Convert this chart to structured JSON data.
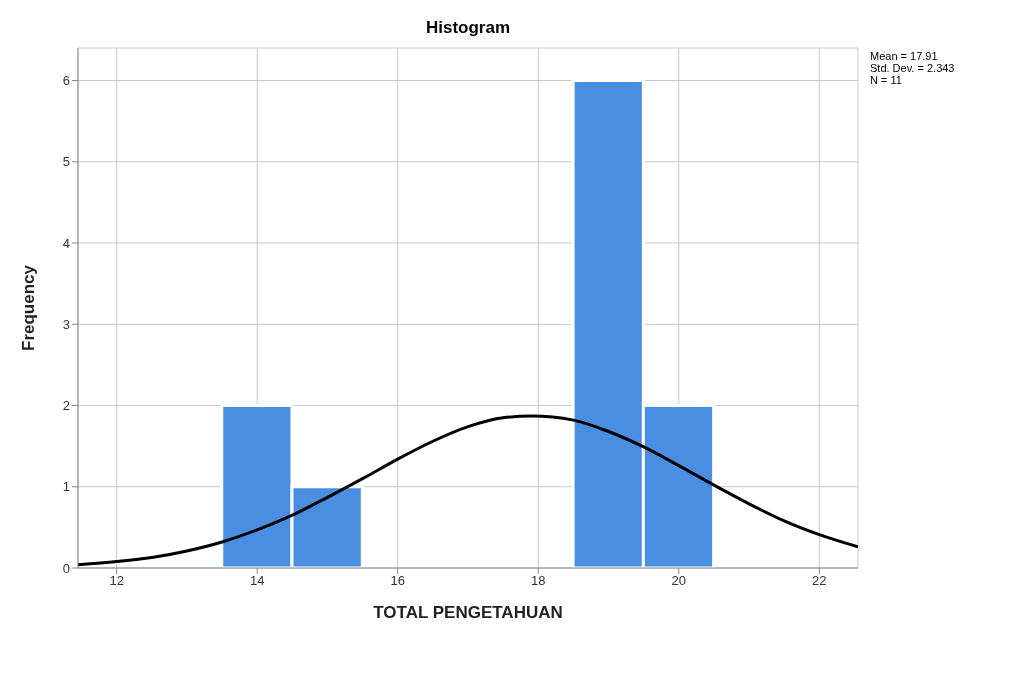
{
  "chart_data": {
    "type": "histogram",
    "title": "Histogram",
    "xlabel": "TOTAL PENGETAHUAN",
    "ylabel": "Frequency",
    "bins": [
      13.5,
      14.5,
      15.5,
      16.5,
      17.5,
      18.5,
      19.5,
      20.5
    ],
    "values": [
      2,
      1,
      0,
      0,
      0,
      6,
      2
    ],
    "color": "#4a8ee2",
    "series": [
      {
        "type": "line",
        "color": "#000000",
        "x": [
          11.45,
          12,
          12.5,
          13,
          13.5,
          14,
          14.5,
          15,
          15.5,
          16,
          16.5,
          17,
          17.5,
          17.91,
          18.5,
          19,
          19.5,
          20,
          20.5,
          21,
          21.5,
          22,
          22.55
        ],
        "values": [
          0.04,
          0.08,
          0.13,
          0.21,
          0.32,
          0.47,
          0.65,
          0.87,
          1.1,
          1.34,
          1.56,
          1.74,
          1.85,
          1.87,
          1.82,
          1.68,
          1.49,
          1.26,
          1.02,
          0.79,
          0.58,
          0.41,
          0.26
        ]
      }
    ],
    "xlim": [
      11.45,
      22.55
    ],
    "xticks": [
      12,
      14,
      16,
      18,
      20,
      22
    ],
    "ylim": [
      0,
      6.4
    ],
    "yticks": [
      0,
      1,
      2,
      3,
      4,
      5,
      6
    ],
    "grid": true,
    "annotations": [
      "Mean = 17.91",
      "Std. Dev. = 2.343",
      "N = 11"
    ]
  }
}
